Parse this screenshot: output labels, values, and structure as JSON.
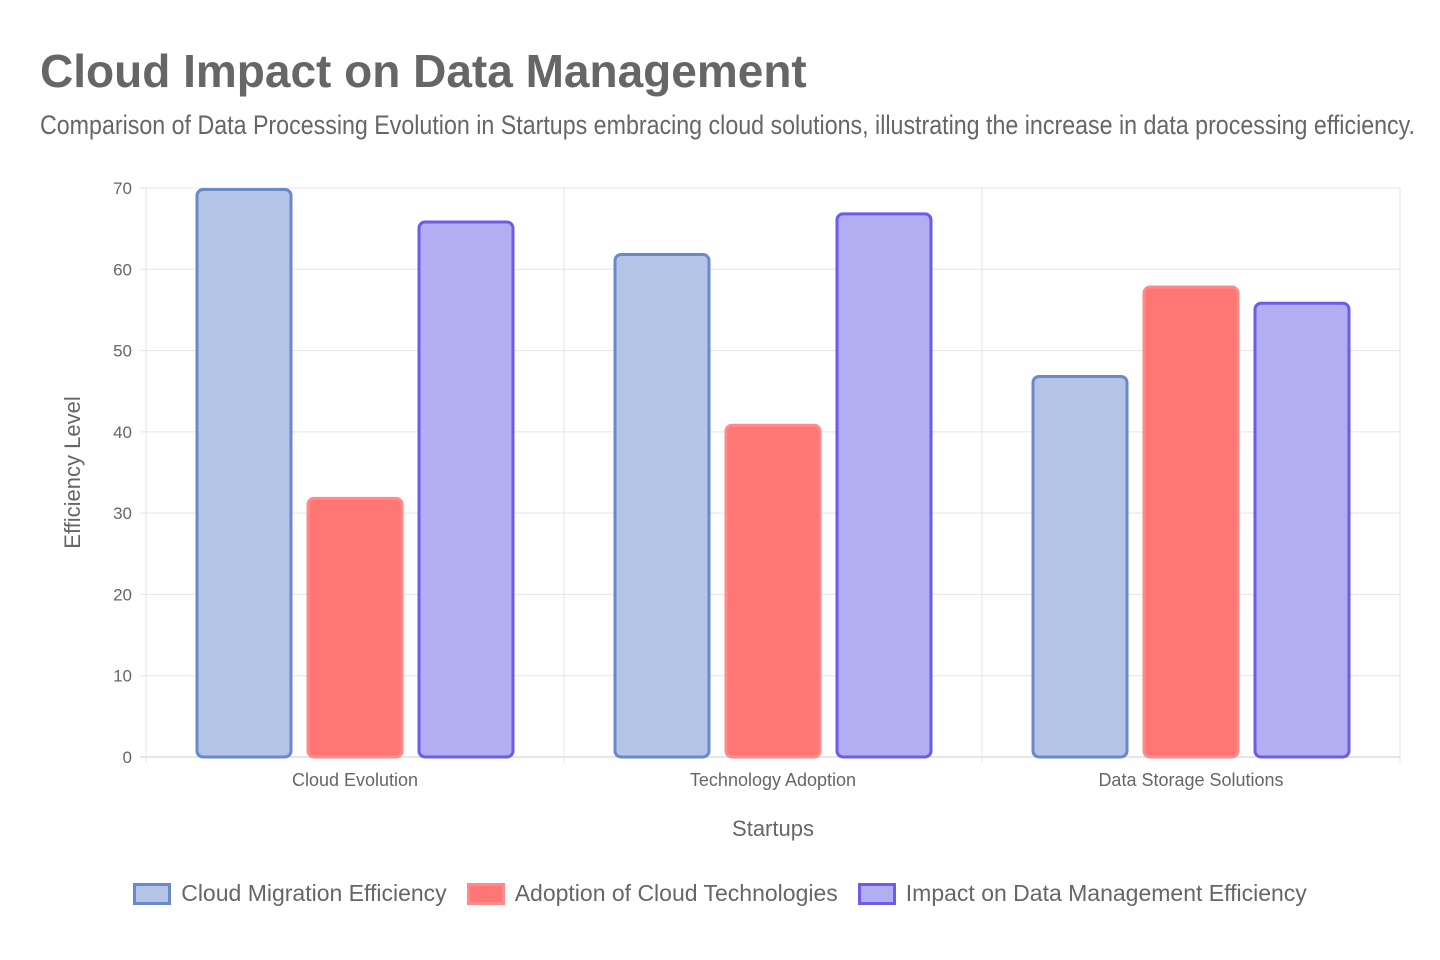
{
  "chart_data": {
    "type": "bar",
    "title": "Cloud Impact on Data Management",
    "subtitle": "Comparison of Data Processing Evolution in Startups embracing cloud solutions, illustrating the increase in data processing efficiency.",
    "xlabel": "Startups",
    "ylabel": "Efficiency Level",
    "ylim": [
      0,
      70
    ],
    "yticks": [
      0,
      10,
      20,
      30,
      40,
      50,
      60,
      70
    ],
    "grid": true,
    "legend_position": "bottom",
    "categories": [
      "Cloud Evolution",
      "Technology Adoption",
      "Data Storage Solutions"
    ],
    "series": [
      {
        "name": "Cloud Migration Efficiency",
        "values": [
          70,
          62,
          47
        ],
        "fill": "#b4c4e6",
        "border": "#6a89cc"
      },
      {
        "name": "Adoption of Cloud Technologies",
        "values": [
          32,
          41,
          58
        ],
        "fill": "#ff7675",
        "border": "#ff8a89"
      },
      {
        "name": "Impact on Data Management Efficiency",
        "values": [
          66,
          67,
          56
        ],
        "fill": "#b3adf2",
        "border": "#6c5ce7"
      }
    ]
  }
}
